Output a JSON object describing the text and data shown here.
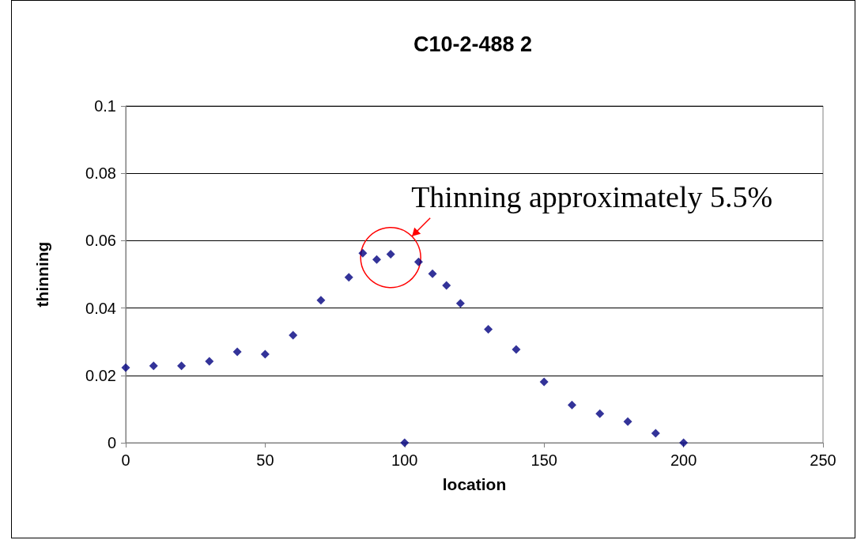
{
  "chart_data": {
    "type": "scatter",
    "title": "C10-2-488 2",
    "xlabel": "location",
    "ylabel": "thinning",
    "x": [
      0,
      10,
      20,
      30,
      40,
      50,
      60,
      70,
      80,
      85,
      90,
      95,
      100,
      105,
      110,
      115,
      120,
      130,
      140,
      150,
      160,
      170,
      180,
      190,
      200
    ],
    "series": [
      {
        "color": "#000080",
        "values": [
          0.0223,
          0.0228,
          0.0228,
          0.0242,
          0.027,
          0.0263,
          0.0319,
          0.0423,
          0.0491,
          0.0563,
          0.0544,
          0.056,
          0,
          0.0537,
          0.0502,
          0.0467,
          0.0414,
          0.0337,
          0.0277,
          0.0181,
          0.0112,
          0.0086,
          0.0063,
          0.0028,
          0
        ]
      }
    ],
    "xlim": [
      0,
      250
    ],
    "xticks": [
      0,
      50,
      100,
      150,
      200,
      250
    ],
    "ylim": [
      0,
      0.1
    ],
    "yticks": [
      0,
      0.02,
      0.04,
      0.06,
      0.08,
      0.1
    ],
    "grid": "y",
    "marker": "diamond",
    "annotations": [
      {
        "text": "Thinning approximately 5.5%",
        "x": 95,
        "y": 0.055
      }
    ]
  }
}
